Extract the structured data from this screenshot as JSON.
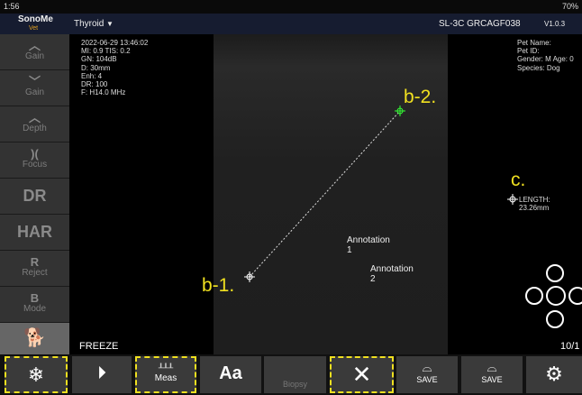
{
  "status_bar": {
    "time": "1:56",
    "battery": "70%"
  },
  "top_bar": {
    "logo": "SonoMe",
    "logo_sub": "Vet",
    "preset": "Thyroid",
    "probe": "SL-3C GRCAGF038",
    "version": "V1.0.3"
  },
  "sidebar": [
    {
      "label": "Gain"
    },
    {
      "label": "Gain"
    },
    {
      "label": "Depth"
    },
    {
      "label": "Focus"
    },
    {
      "label": "DR"
    },
    {
      "label": "HAR"
    },
    {
      "title": "R",
      "label": "Reject"
    },
    {
      "title": "B",
      "label": "Mode"
    }
  ],
  "scan_info": [
    "2022-06-29 13:46:02",
    "MI: 0.9  TIS: 0.2",
    "GN: 104dB",
    "D: 30mm",
    "Enh: 4",
    "DR: 100",
    "F: H14.0 MHz"
  ],
  "patient_info": [
    "Pet Name:",
    "Pet ID:",
    "Gender: M  Age: 0",
    "Species: Dog"
  ],
  "markers": {
    "b1": "b-1.",
    "b2": "b-2.",
    "c": "c.",
    "length": "LENGTH: 23.26mm"
  },
  "annotations": [
    [
      "Annotation",
      "1"
    ],
    [
      "Annotation",
      "2"
    ]
  ],
  "freeze": "FREEZE",
  "page": "10/1",
  "toolbar": {
    "meas": "Meas",
    "text": "Aa",
    "biopsy": "Biopsy",
    "save1": "SAVE",
    "save2": "SAVE"
  }
}
